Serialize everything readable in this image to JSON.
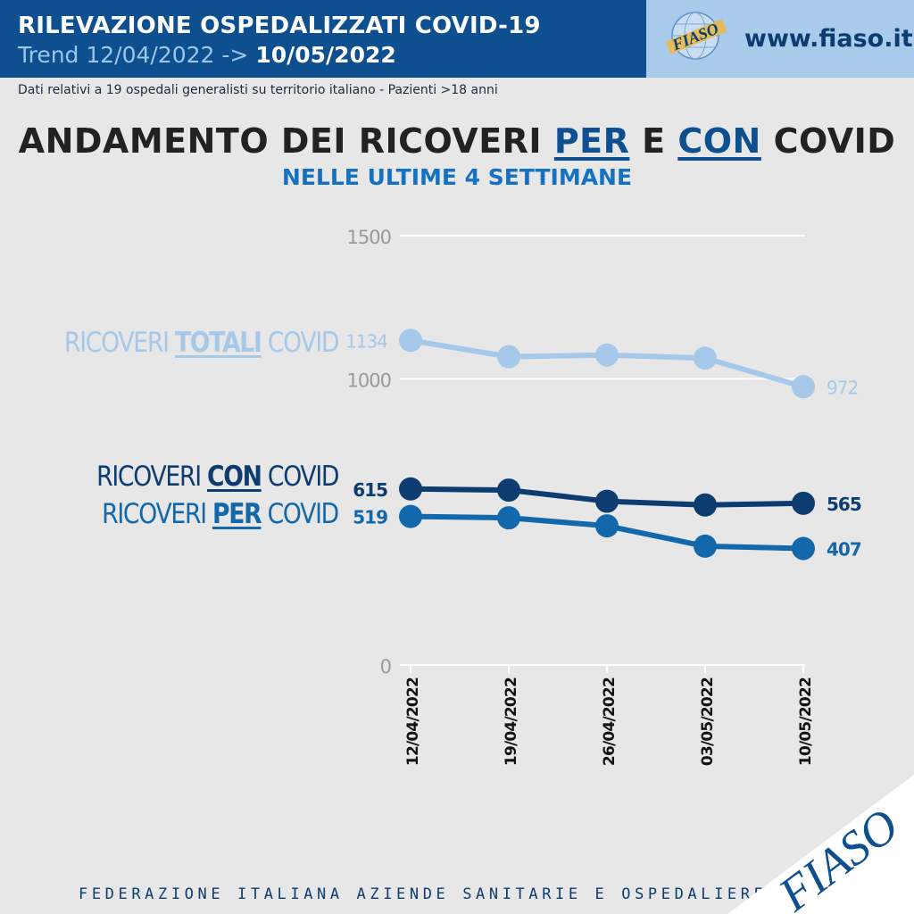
{
  "header": {
    "title": "RILEVAZIONE OSPEDALIZZATI COVID-19",
    "trend_prefix": "Trend 12/04/2022 ->",
    "trend_end": "10/05/2022"
  },
  "logo": {
    "text": "FIASO",
    "website": "www.fiaso.it"
  },
  "subheading": "Dati relativi a 19 ospedali generalisti su territorio italiano - Pazienti >18 anni",
  "title": {
    "part1": "ANDAMENTO DEI RICOVERI",
    "per": "PER",
    "e": "E",
    "con": "CON",
    "covid": "COVID",
    "subtitle": "NELLE ULTIME 4 SETTIMANE"
  },
  "series_labels": {
    "ricoveri": "RICOVERI",
    "covid": "COVID",
    "totali": "TOTALI",
    "con": "CON",
    "per": "PER"
  },
  "chart_data": {
    "type": "line",
    "title": "ANDAMENTO DEI RICOVERI PER E CON COVID",
    "subtitle": "NELLE ULTIME 4 SETTIMANE",
    "categories": [
      "12/04/2022",
      "19/04/2022",
      "26/04/2022",
      "03/05/2022",
      "10/05/2022"
    ],
    "ylim": [
      0,
      1500
    ],
    "yticks": [
      "0",
      "1000",
      "1500"
    ],
    "grid": true,
    "legend": "left",
    "series": [
      {
        "name": "RICOVERI TOTALI COVID",
        "values": [
          1134,
          1077,
          1083,
          1072,
          972
        ],
        "color": "#a6c9e9",
        "labels": [
          "1134",
          "",
          "",
          "",
          "972"
        ]
      },
      {
        "name": "RICOVERI CON COVID",
        "values": [
          615,
          611,
          572,
          559,
          565
        ],
        "color": "#0d3c70",
        "labels": [
          "615",
          "",
          "",
          "",
          "565"
        ]
      },
      {
        "name": "RICOVERI PER COVID",
        "values": [
          519,
          514,
          486,
          415,
          407
        ],
        "color": "#1367ab",
        "labels": [
          "519",
          "",
          "",
          "",
          "407"
        ]
      }
    ]
  },
  "footer": {
    "text": "FEDERAZIONE ITALIANA AZIENDE SANITARIE E OSPEDALIERE",
    "logo_text": "FIASO"
  }
}
